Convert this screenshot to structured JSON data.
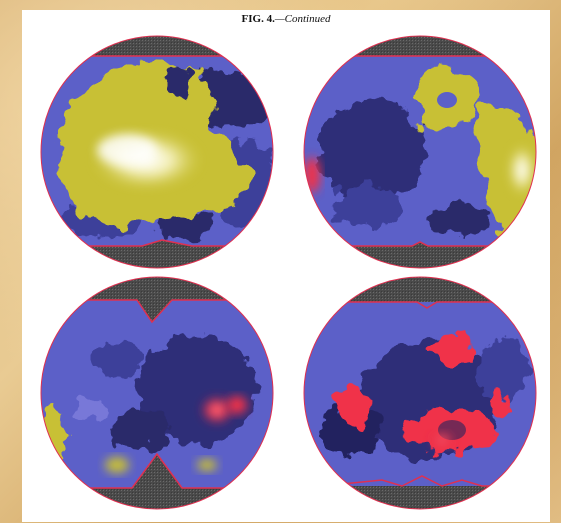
{
  "figure": {
    "caption_label": "FIG. 4.",
    "caption_continued": "—Continued"
  },
  "colors": {
    "background_paper": "#e0bb80",
    "panel": "#ffffff",
    "mask": "#4a4a4a",
    "base_blue": "#5c60c8",
    "dark_navy": "#23235e",
    "yellow": "#c8c036",
    "white_hot": "#ffffff",
    "red": "#f0304a",
    "outline": "#e03050"
  },
  "maps": [
    {
      "id": "top-left",
      "dominant": "yellow"
    },
    {
      "id": "top-right",
      "dominant": "yellow"
    },
    {
      "id": "bottom-left",
      "dominant": "blue"
    },
    {
      "id": "bottom-right",
      "dominant": "red"
    }
  ]
}
